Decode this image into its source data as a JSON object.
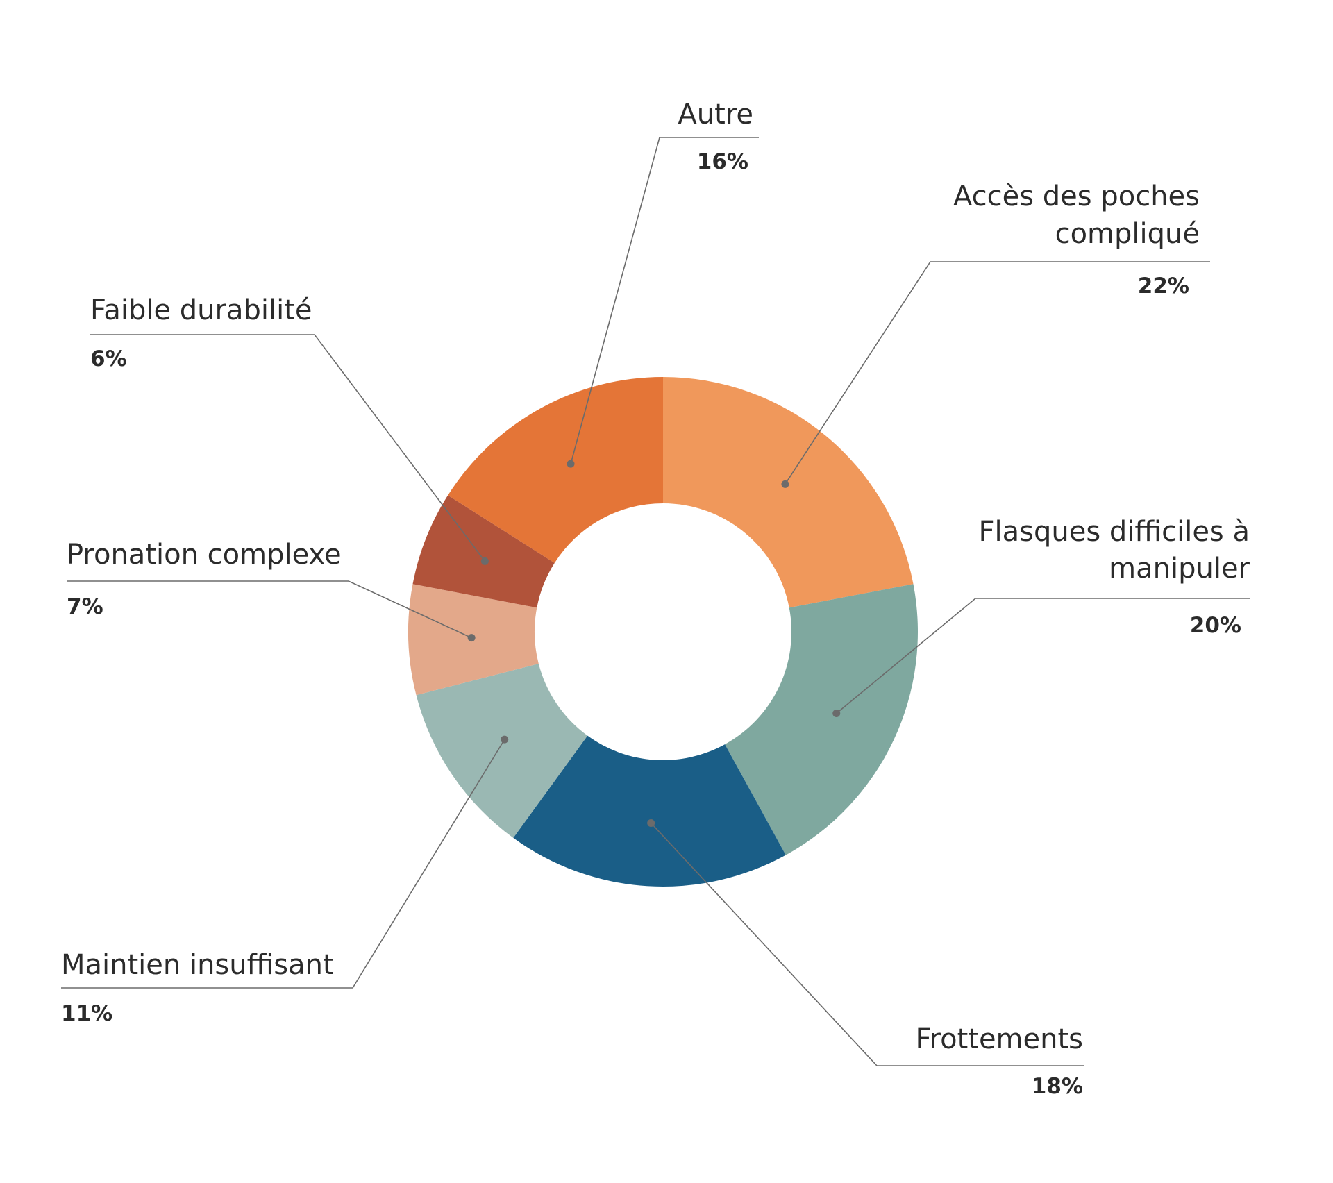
{
  "chart_data": {
    "type": "pie",
    "variant": "donut",
    "title": "",
    "slices": [
      {
        "label": "Accès des poches compliqué",
        "label_lines": [
          "Accès des poches",
          "compliqué"
        ],
        "value": 22,
        "value_label": "22%",
        "color": "#F0985B"
      },
      {
        "label": "Flasques difficiles à manipuler",
        "label_lines": [
          "Flasques difficiles à",
          "manipuler"
        ],
        "value": 20,
        "value_label": "20%",
        "color": "#7FA89F"
      },
      {
        "label": "Frottements",
        "label_lines": [
          "Frottements"
        ],
        "value": 18,
        "value_label": "18%",
        "color": "#1A5E87"
      },
      {
        "label": "Maintien insuffisant",
        "label_lines": [
          "Maintien insuffisant"
        ],
        "value": 11,
        "value_label": "11%",
        "color": "#9AB8B3"
      },
      {
        "label": "Pronation complexe",
        "label_lines": [
          "Pronation complexe"
        ],
        "value": 7,
        "value_label": "7%",
        "color": "#E3A88A"
      },
      {
        "label": "Faible durabilité",
        "label_lines": [
          "Faible durabilité"
        ],
        "value": 6,
        "value_label": "6%",
        "color": "#B1533A"
      },
      {
        "label": "Autre",
        "label_lines": [
          "Autre"
        ],
        "value": 16,
        "value_label": "16%",
        "color": "#E47537"
      }
    ]
  }
}
